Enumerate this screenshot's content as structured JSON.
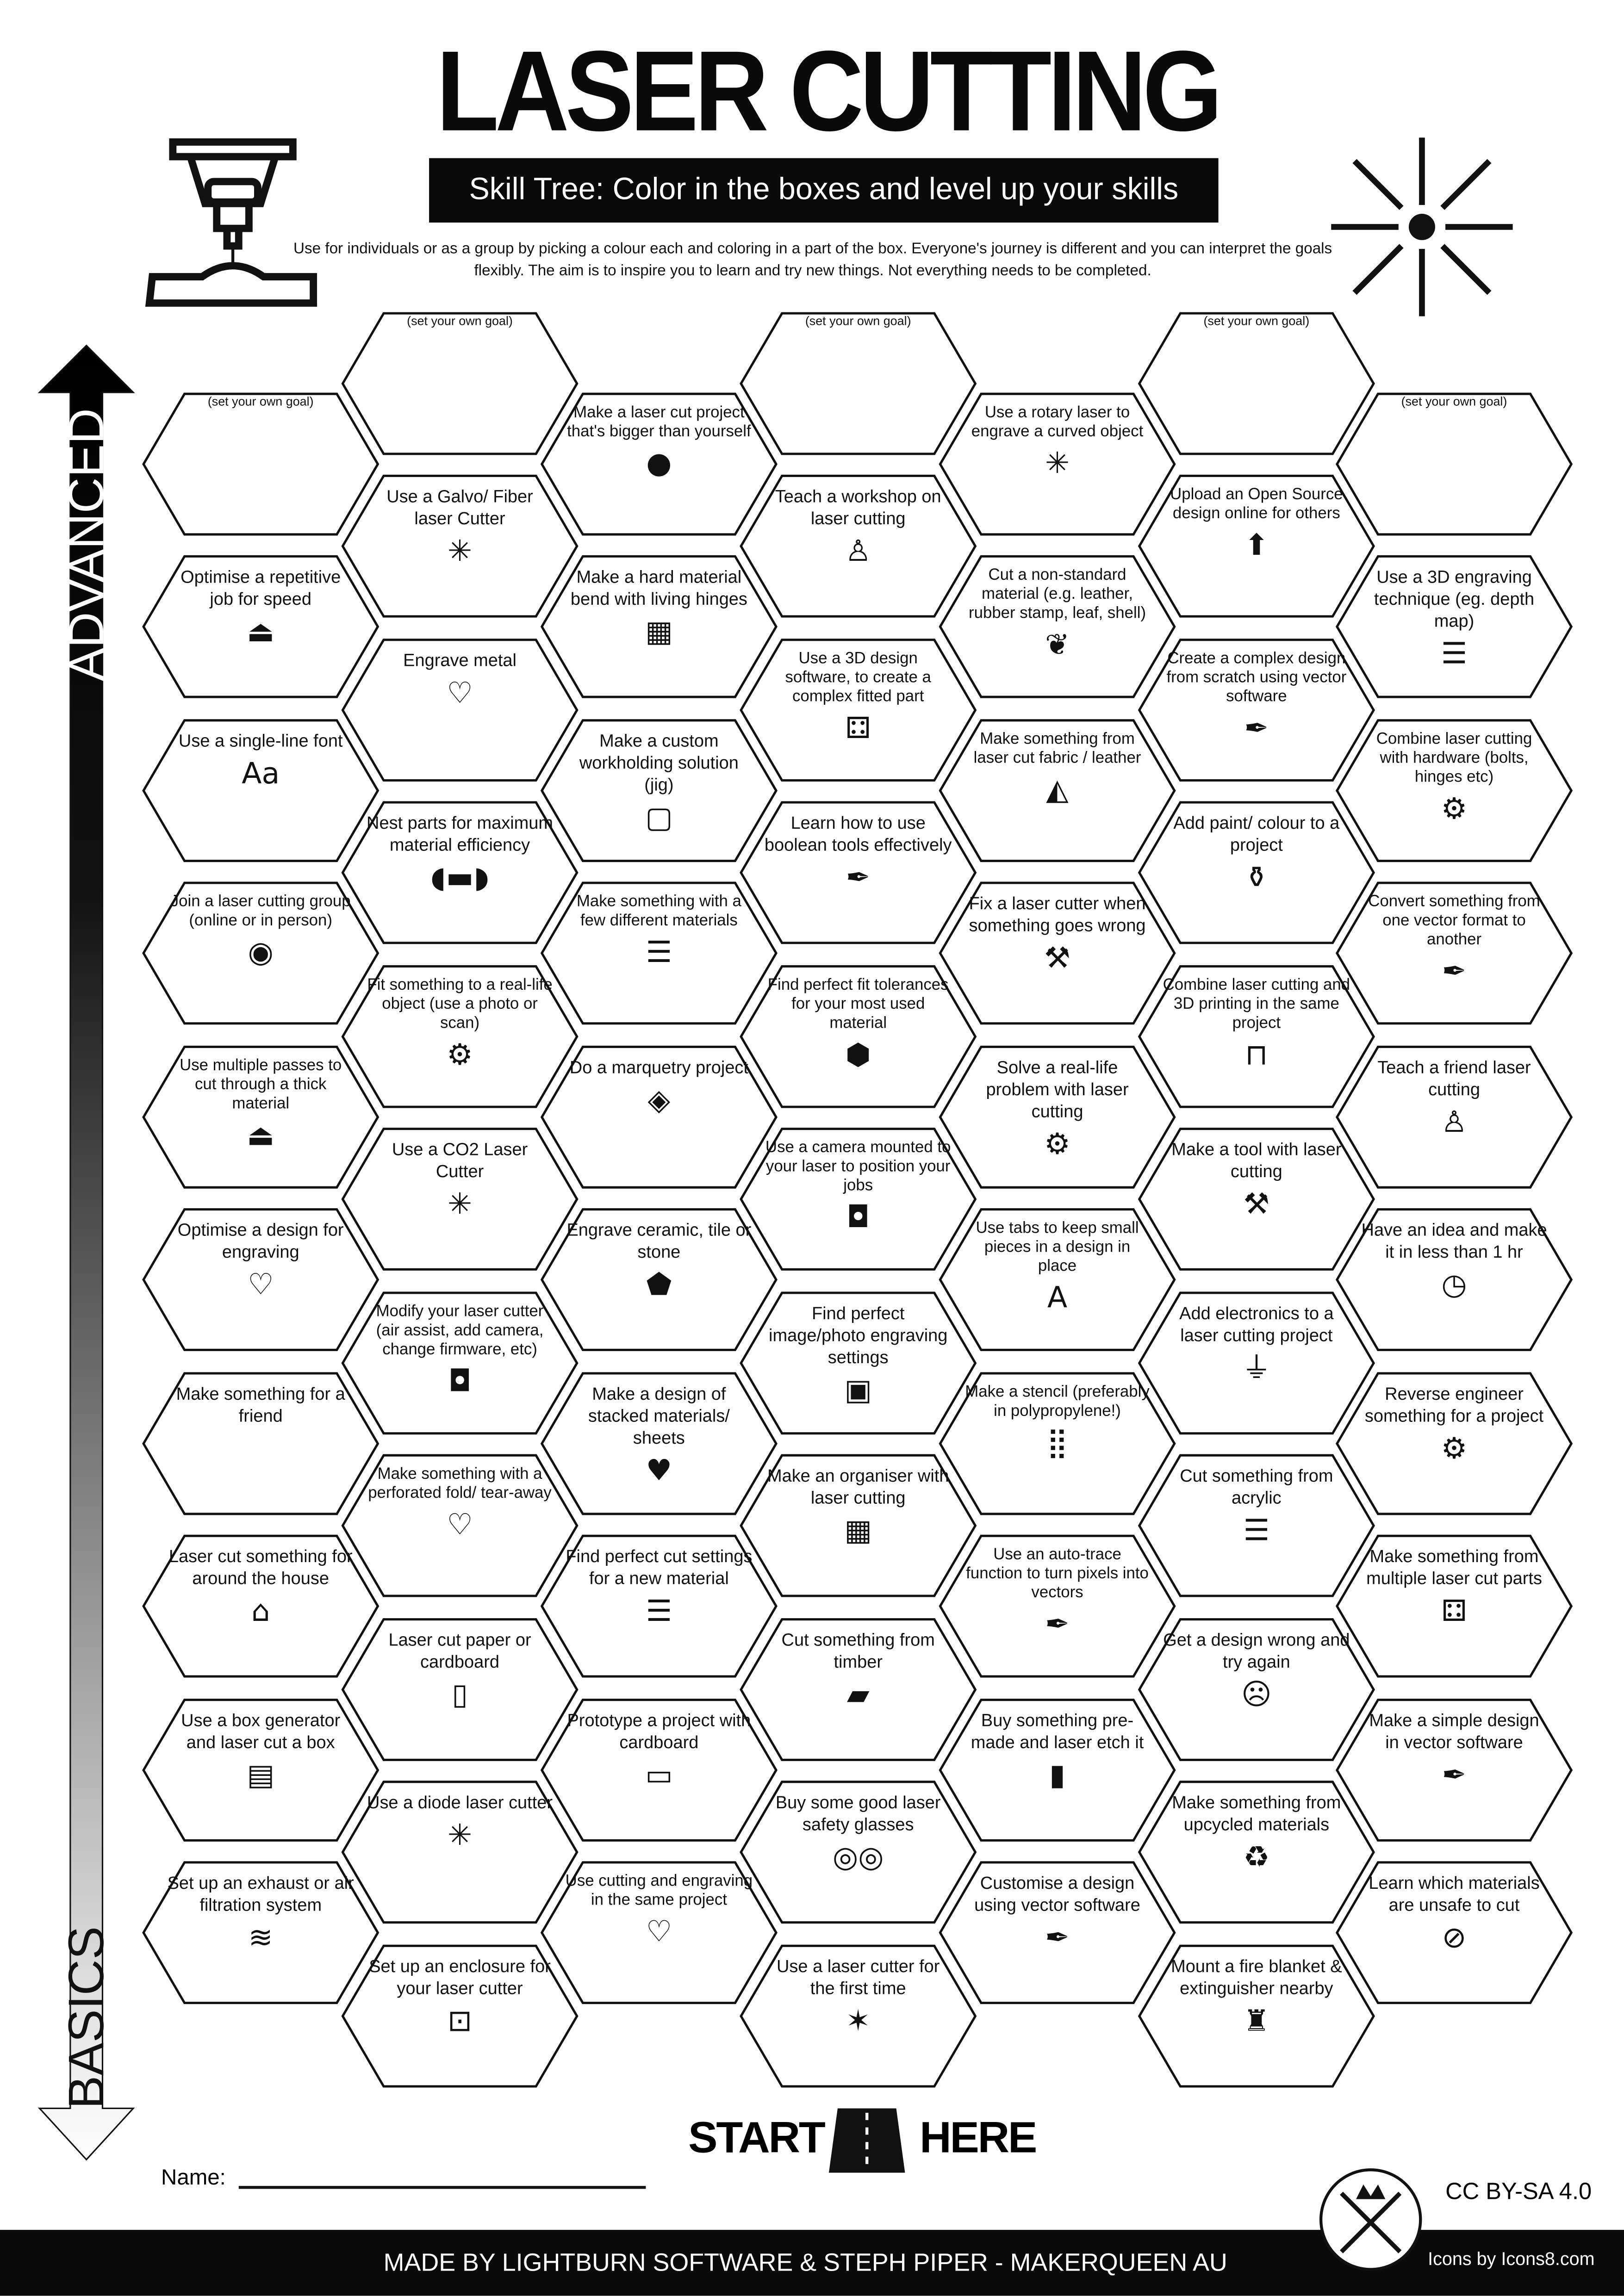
{
  "header": {
    "title": "LASER CUTTING",
    "subtitle": "Skill Tree:  Color in the boxes and level up your skills",
    "description": "Use for individuals or as a group by picking a colour each and coloring in a part of the box.  Everyone's journey is different and you can interpret the goals flexibly.  The aim is to inspire you to learn and try new things. Not everything needs to be completed.",
    "left_icon": "laser-cutter-machine-icon",
    "right_icon": "laser-burst-icon"
  },
  "progress_arrow": {
    "top_label": "ADVANCED",
    "bottom_label": "BASICS"
  },
  "columns": [
    {
      "items": [
        {
          "text": "(set your own goal)",
          "goal": true
        },
        {
          "text": "Optimise a repetitive job for speed",
          "icon": "laser-machine"
        },
        {
          "text": "Use a single-line font",
          "icon": "font",
          "icon_text": "Aa"
        },
        {
          "text": "Join a laser cutting group (online or in person)",
          "icon": "location-pin"
        },
        {
          "text": "Use multiple passes to cut through a thick material",
          "icon": "laser-machine"
        },
        {
          "text": "Optimise a design for engraving",
          "icon": "heart-laser"
        },
        {
          "text": "Make something for a friend",
          "icon": "gift-bow"
        },
        {
          "text": "Laser cut something for around the house",
          "icon": "house"
        },
        {
          "text": "Use a box generator and laser cut a box",
          "icon": "book-box"
        },
        {
          "text": "Set up an exhaust or air filtration system",
          "icon": "wind"
        }
      ]
    },
    {
      "items": [
        {
          "text": "(set your own goal)",
          "goal": true
        },
        {
          "text": "Use a Galvo/ Fiber laser Cutter",
          "icon": "laser-burst"
        },
        {
          "text": "Engrave metal",
          "icon": "heart-laser"
        },
        {
          "text": "Nest parts for maximum material efficiency",
          "icon": "conveyor"
        },
        {
          "text": "Fit something to a real-life object (use a photo or scan)",
          "icon": "gear-hand"
        },
        {
          "text": "Use a CO2 Laser Cutter",
          "icon": "laser-burst"
        },
        {
          "text": "Modify  your laser cutter (air assist, add camera, change firmware, etc)",
          "icon": "camera"
        },
        {
          "text": "Make something with a perforated fold/ tear-away",
          "icon": "heart-half"
        },
        {
          "text": "Laser cut paper or cardboard",
          "icon": "paper"
        },
        {
          "text": "Use a diode laser cutter",
          "icon": "laser-burst"
        },
        {
          "text": "Set up an enclosure for your laser cutter",
          "icon": "enclosure"
        }
      ]
    },
    {
      "items": [
        {
          "text": "Make a laser cut project  that's bigger than yourself",
          "icon": "elephant"
        },
        {
          "text": "Make a hard material bend with living hinges",
          "icon": "living-hinge"
        },
        {
          "text": "Make a custom workholding solution (jig)",
          "icon": "jig-frame"
        },
        {
          "text": "Make something with a few different materials",
          "icon": "layers"
        },
        {
          "text": "Do a marquetry project",
          "icon": "marquetry"
        },
        {
          "text": "Engrave ceramic, tile or stone",
          "icon": "stone"
        },
        {
          "text": "Make a design of stacked materials/ sheets",
          "icon": "heart-stack"
        },
        {
          "text": "Find perfect cut settings for a new material",
          "icon": "layers"
        },
        {
          "text": "Prototype a project with cardboard",
          "icon": "cardboard"
        },
        {
          "text": "Use cutting and engraving in the same project",
          "icon": "heart-laser"
        }
      ]
    },
    {
      "items": [
        {
          "text": "(set your own goal)",
          "goal": true
        },
        {
          "text": "Teach a workshop on laser cutting",
          "icon": "teacher"
        },
        {
          "text": "Use a 3D design software, to create a complex fitted part",
          "icon": "fitted-part"
        },
        {
          "text": "Learn how to use boolean tools effectively",
          "icon": "pen-tool"
        },
        {
          "text": "Find perfect fit tolerances for your most used material",
          "icon": "cube-tolerance"
        },
        {
          "text": "Use a camera mounted to your laser to position your jobs",
          "icon": "camera"
        },
        {
          "text": "Find perfect image/photo engraving settings",
          "icon": "portrait"
        },
        {
          "text": "Make an organiser with laser cutting",
          "icon": "organiser"
        },
        {
          "text": "Cut something from timber",
          "icon": "timber"
        },
        {
          "text": "Buy some good laser safety glasses",
          "icon": "safety-glasses"
        },
        {
          "text": "Use a laser cutter for the first time",
          "icon": "party-popper"
        }
      ]
    },
    {
      "items": [
        {
          "text": "Use a rotary laser to engrave a curved object",
          "icon": "laser-burst"
        },
        {
          "text": "Cut a non-standard material (e.g. leather, rubber stamp, leaf, shell)",
          "icon": "leaf"
        },
        {
          "text": "Make something from laser cut fabric / leather",
          "icon": "fabric"
        },
        {
          "text": "Fix a laser cutter when something goes wrong",
          "icon": "tools"
        },
        {
          "text": "Solve a real-life problem with laser cutting",
          "icon": "gear-hand"
        },
        {
          "text": "Use tabs to keep small pieces in a design in place",
          "icon": "letter-a"
        },
        {
          "text": "Make a stencil (preferably in polypropylene!)",
          "icon": "stencil"
        },
        {
          "text": "Use an auto-trace function to turn pixels into vectors",
          "icon": "pen-tool"
        },
        {
          "text": "Buy something pre-made and laser etch it",
          "icon": "etch-item"
        },
        {
          "text": "Customise a design using vector software",
          "icon": "pen-tool"
        }
      ]
    },
    {
      "items": [
        {
          "text": "(set your own goal)",
          "goal": true
        },
        {
          "text": "Upload an Open Source design online for others",
          "icon": "upload"
        },
        {
          "text": "Create a complex design from scratch using vector software",
          "icon": "pen-tool"
        },
        {
          "text": "Add paint/ colour to a project",
          "icon": "paint-bucket"
        },
        {
          "text": "Combine laser cutting and 3D printing in the same project",
          "icon": "printer-3d"
        },
        {
          "text": "Make a tool with laser cutting",
          "icon": "tools"
        },
        {
          "text": "Add electronics to a laser cutting project",
          "icon": "led"
        },
        {
          "text": "Cut something from acrylic",
          "icon": "layers"
        },
        {
          "text": "Get a design wrong and try again",
          "icon": "facepalm"
        },
        {
          "text": "Make something from upcycled materials",
          "icon": "recycle"
        },
        {
          "text": "Mount a fire blanket & extinguisher nearby",
          "icon": "fire-extinguisher"
        }
      ]
    },
    {
      "items": [
        {
          "text": "(set your own goal)",
          "goal": true
        },
        {
          "text": "Use a 3D engraving technique (eg. depth map)",
          "icon": "layers"
        },
        {
          "text": "Combine laser cutting with hardware (bolts, hinges etc)",
          "icon": "hardware"
        },
        {
          "text": "Convert something from one vector format to another",
          "icon": "pen-tool"
        },
        {
          "text": "Teach a friend laser cutting",
          "icon": "teacher"
        },
        {
          "text": "Have an idea and make it in less than 1 hr",
          "icon": "clock"
        },
        {
          "text": "Reverse engineer something for a project",
          "icon": "gear-hand"
        },
        {
          "text": "Make something from multiple laser cut parts",
          "icon": "fitted-part"
        },
        {
          "text": "Make a simple design in vector software",
          "icon": "pen-tool"
        },
        {
          "text": "Learn which materials are unsafe to cut",
          "icon": "no-symbol"
        }
      ]
    }
  ],
  "start": {
    "left": "START",
    "right": "HERE"
  },
  "name_label": "Name:",
  "license": "CC BY-SA 4.0",
  "footer": {
    "credit": "MADE BY LIGHTBURN SOFTWARE & STEPH PIPER  -  MAKERQUEEN AU",
    "icons_credit": "Icons by Icons8.com"
  },
  "colors": {
    "ink": "#0a0a0a",
    "paper": "#ffffff"
  }
}
